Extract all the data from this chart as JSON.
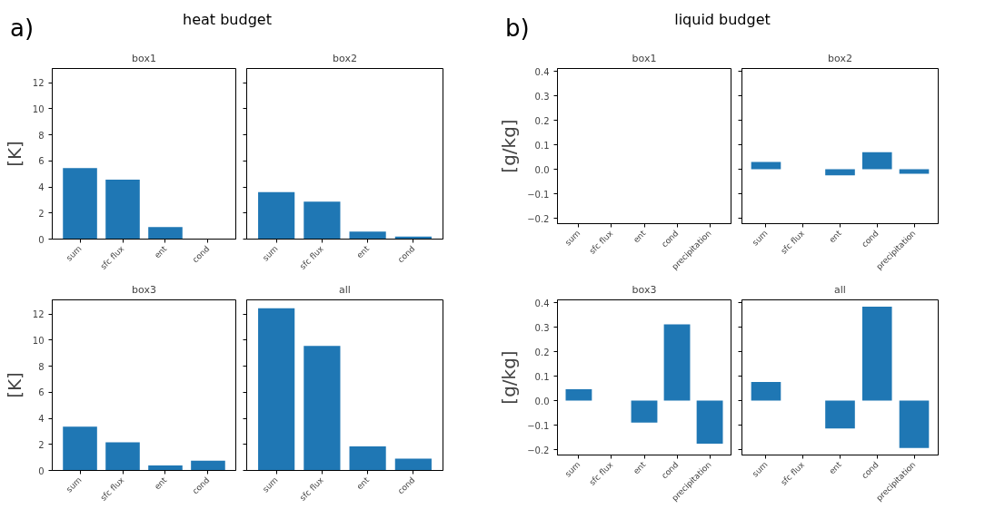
{
  "chart_data": [
    {
      "type": "bar",
      "title": "box1",
      "annotations": [
        "a)",
        "heat budget"
      ],
      "ylabel": "[K]",
      "categories": [
        "sum",
        "sfc flux",
        "ent",
        "cond"
      ],
      "values": [
        5.45,
        4.57,
        0.93,
        0
      ],
      "color": "#1f77b4",
      "ylim": [
        0,
        13.1
      ],
      "yticks": [
        0,
        2,
        4,
        6,
        8,
        10,
        12
      ],
      "grid": false
    },
    {
      "type": "bar",
      "title": "box2",
      "categories": [
        "sum",
        "sfc flux",
        "ent",
        "cond"
      ],
      "values": [
        3.6,
        2.87,
        0.57,
        0.2
      ],
      "color": "#1f77b4",
      "ylim": [
        0,
        13.1
      ],
      "yticks": [
        0,
        2,
        4,
        6,
        8,
        10,
        12
      ],
      "grid": false,
      "tick_labels": "x"
    },
    {
      "type": "bar",
      "title": "box3",
      "ylabel": "[K]",
      "categories": [
        "sum",
        "sfc flux",
        "ent",
        "cond"
      ],
      "values": [
        3.36,
        2.16,
        0.38,
        0.75
      ],
      "color": "#1f77b4",
      "ylim": [
        0,
        13.1
      ],
      "yticks": [
        0,
        2,
        4,
        6,
        8,
        10,
        12
      ],
      "grid": false
    },
    {
      "type": "bar",
      "title": "all",
      "categories": [
        "sum",
        "sfc flux",
        "ent",
        "cond"
      ],
      "values": [
        12.46,
        9.57,
        1.85,
        0.9
      ],
      "color": "#1f77b4",
      "ylim": [
        0,
        13.1
      ],
      "yticks": [
        0,
        2,
        4,
        6,
        8,
        10,
        12
      ],
      "grid": false,
      "tick_labels": "x"
    },
    {
      "type": "bar",
      "title": "box1",
      "annotations": [
        "b)",
        "liquid budget"
      ],
      "ylabel": "[g/kg]",
      "categories": [
        "sum",
        "sfc flux",
        "ent",
        "cond",
        "precipitation"
      ],
      "values": [
        0,
        0,
        0,
        0,
        0
      ],
      "color": "#1f77b4",
      "ylim": [
        -0.222,
        0.412
      ],
      "yticks": [
        {
          "value": -0.2,
          "label": "−0.2"
        },
        {
          "value": -0.1,
          "label": "−0.1"
        },
        {
          "value": 0,
          "label": "0.0"
        },
        {
          "value": 0.1,
          "label": "0.1"
        },
        {
          "value": 0.2,
          "label": "0.2"
        },
        {
          "value": 0.3,
          "label": "0.3"
        },
        {
          "value": 0.4,
          "label": "0.4"
        }
      ],
      "grid": false
    },
    {
      "type": "bar",
      "title": "box2",
      "categories": [
        "sum",
        "sfc flux",
        "ent",
        "cond",
        "precipitation"
      ],
      "values": [
        0.03,
        0,
        -0.025,
        0.07,
        -0.018
      ],
      "color": "#1f77b4",
      "ylim": [
        -0.222,
        0.412
      ],
      "yticks": [
        {
          "value": -0.2,
          "label": null
        },
        {
          "value": -0.1,
          "label": null
        },
        {
          "value": 0,
          "label": null
        },
        {
          "value": 0.1,
          "label": null
        },
        {
          "value": 0.2,
          "label": null
        },
        {
          "value": 0.3,
          "label": null
        },
        {
          "value": 0.4,
          "label": null
        }
      ],
      "grid": false,
      "tick_labels": "x"
    },
    {
      "type": "bar",
      "title": "box3",
      "ylabel": "[g/kg]",
      "categories": [
        "sum",
        "sfc flux",
        "ent",
        "cond",
        "precipitation"
      ],
      "values": [
        0.047,
        0,
        -0.089,
        0.312,
        -0.176
      ],
      "color": "#1f77b4",
      "ylim": [
        -0.222,
        0.412
      ],
      "yticks": [
        {
          "value": -0.2,
          "label": "−0.2"
        },
        {
          "value": -0.1,
          "label": "−0.1"
        },
        {
          "value": 0,
          "label": "0.0"
        },
        {
          "value": 0.1,
          "label": "0.1"
        },
        {
          "value": 0.2,
          "label": "0.2"
        },
        {
          "value": 0.3,
          "label": "0.3"
        },
        {
          "value": 0.4,
          "label": "0.4"
        }
      ],
      "grid": false
    },
    {
      "type": "bar",
      "title": "all",
      "categories": [
        "sum",
        "sfc flux",
        "ent",
        "cond",
        "precipitation"
      ],
      "values": [
        0.076,
        0,
        -0.114,
        0.384,
        -0.193
      ],
      "color": "#1f77b4",
      "ylim": [
        -0.222,
        0.412
      ],
      "yticks": [
        {
          "value": -0.2,
          "label": null
        },
        {
          "value": -0.1,
          "label": null
        },
        {
          "value": 0,
          "label": null
        },
        {
          "value": 0.1,
          "label": null
        },
        {
          "value": 0.2,
          "label": null
        },
        {
          "value": 0.3,
          "label": null
        },
        {
          "value": 0.4,
          "label": null
        }
      ],
      "grid": false,
      "tick_labels": "x"
    }
  ]
}
